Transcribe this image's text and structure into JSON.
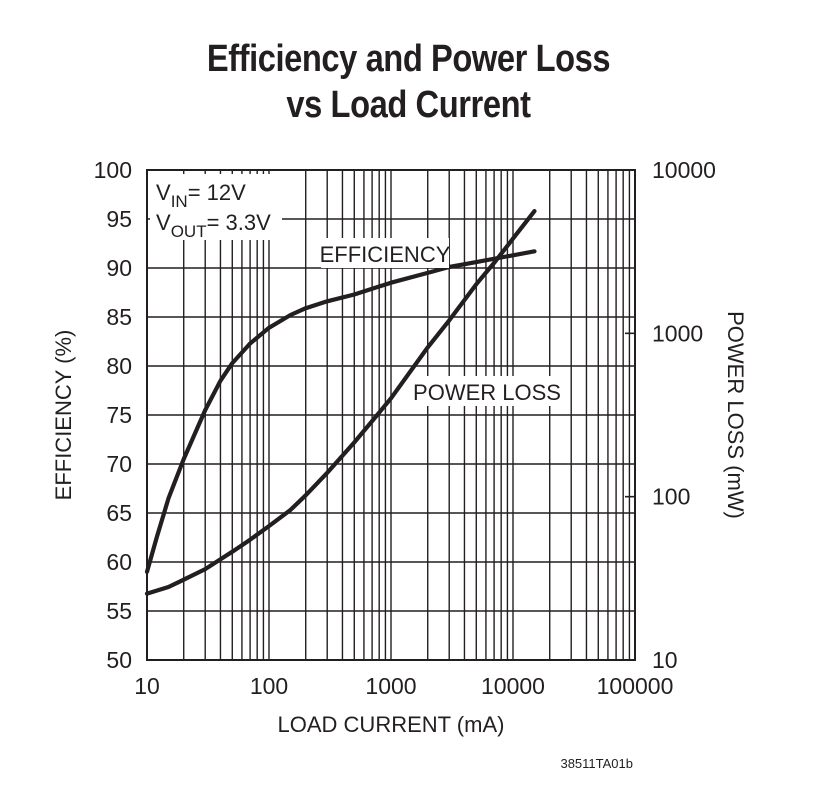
{
  "title_line1": "Efficiency and Power Loss",
  "title_line2": "vs Load Current",
  "figure_code": "38511TA01b",
  "chart_data": {
    "type": "line",
    "title": "Efficiency and Power Loss vs Load Current",
    "xlabel": "LOAD CURRENT (mA)",
    "ylabel": "EFFICIENCY (%)",
    "y2label": "POWER LOSS (mW)",
    "xscale": "log",
    "xlim": [
      10,
      100000
    ],
    "ylim": [
      50,
      100
    ],
    "y2scale": "log",
    "y2lim": [
      10,
      10000
    ],
    "x_ticks": [
      "10",
      "100",
      "1000",
      "10000",
      "100000"
    ],
    "y_ticks": [
      "50",
      "55",
      "60",
      "65",
      "70",
      "75",
      "80",
      "85",
      "90",
      "95",
      "100"
    ],
    "y2_ticks": [
      "10",
      "100",
      "1000",
      "10000"
    ],
    "grid": true,
    "conditions": {
      "vin_sub": "IN",
      "vin_val": "= 12V",
      "vout_sub": "OUT",
      "vout_val": "= 3.3V"
    },
    "series": [
      {
        "name": "EFFICIENCY",
        "axis": "left",
        "x": [
          10,
          12,
          15,
          20,
          30,
          40,
          50,
          70,
          100,
          150,
          200,
          300,
          500,
          1000,
          2000,
          3000,
          5000,
          10000,
          15000
        ],
        "y": [
          59,
          62.5,
          66.5,
          70.5,
          75.5,
          78.5,
          80.3,
          82.3,
          83.9,
          85.2,
          85.9,
          86.6,
          87.3,
          88.5,
          89.5,
          90.1,
          90.6,
          91.3,
          91.7
        ]
      },
      {
        "name": "POWER LOSS",
        "axis": "right",
        "x": [
          10,
          15,
          20,
          30,
          50,
          70,
          100,
          150,
          200,
          300,
          500,
          700,
          1000,
          2000,
          3000,
          5000,
          7000,
          10000,
          15000
        ],
        "y": [
          25.5,
          28,
          31,
          36,
          46,
          54.5,
          66,
          83,
          102,
          140,
          215,
          290,
          400,
          820,
          1200,
          2000,
          2700,
          3800,
          5600
        ]
      }
    ]
  }
}
